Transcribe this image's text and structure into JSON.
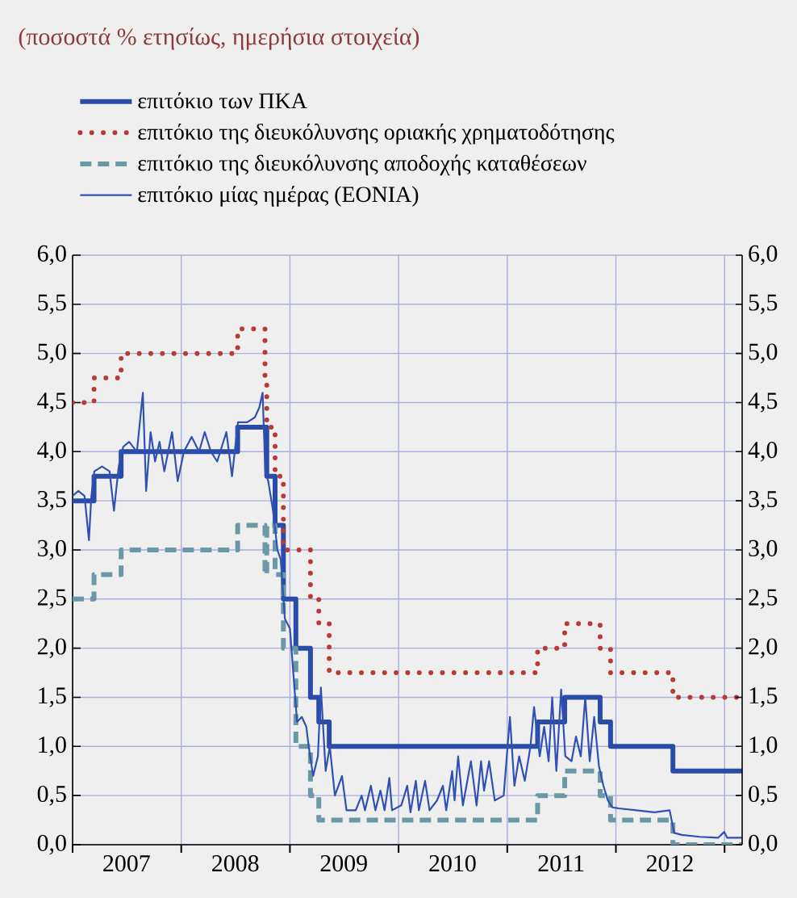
{
  "chart_data": {
    "type": "line",
    "title": "(ποσοστά % ετησίως, ημερήσια στοιχεία)",
    "xlim": [
      "2007-01-01",
      "2013-03-01"
    ],
    "xticks": [
      {
        "value": "2007-01-01",
        "label": null
      },
      {
        "value": "2008-01-01",
        "label": null
      },
      {
        "value": "2009-01-01",
        "label": null
      },
      {
        "value": "2010-01-01",
        "label": null
      },
      {
        "value": "2011-01-01",
        "label": null
      },
      {
        "value": "2012-01-01",
        "label": null
      },
      {
        "value": "2013-01-01",
        "label": null
      },
      {
        "value": "2007-07-01",
        "label": "2007"
      },
      {
        "value": "2008-07-01",
        "label": "2008"
      },
      {
        "value": "2009-07-01",
        "label": "2009"
      },
      {
        "value": "2010-07-01",
        "label": "2010"
      },
      {
        "value": "2011-07-01",
        "label": "2011"
      },
      {
        "value": "2012-07-01",
        "label": "2012"
      }
    ],
    "ylim": [
      0,
      6
    ],
    "yticks": [
      {
        "value": 0,
        "label": "0,0"
      },
      {
        "value": 0.5,
        "label": "0,5"
      },
      {
        "value": 1,
        "label": "1,0"
      },
      {
        "value": 1.5,
        "label": "1,5"
      },
      {
        "value": 2,
        "label": "2,0"
      },
      {
        "value": 2.5,
        "label": "2,5"
      },
      {
        "value": 3,
        "label": "3,0"
      },
      {
        "value": 3.5,
        "label": "3,5"
      },
      {
        "value": 4,
        "label": "4,0"
      },
      {
        "value": 4.5,
        "label": "4,5"
      },
      {
        "value": 5,
        "label": "5,0"
      },
      {
        "value": 5.5,
        "label": "5,5"
      },
      {
        "value": 6,
        "label": "6,0"
      }
    ],
    "y2lim": [
      0,
      6
    ],
    "y2ticks": [
      {
        "value": 0,
        "label": "0,0"
      },
      {
        "value": 0.5,
        "label": "0,5"
      },
      {
        "value": 1,
        "label": "1,0"
      },
      {
        "value": 1.5,
        "label": "1,5"
      },
      {
        "value": 2,
        "label": "2,0"
      },
      {
        "value": 2.5,
        "label": "2,5"
      },
      {
        "value": 3,
        "label": "3,0"
      },
      {
        "value": 3.5,
        "label": "3,5"
      },
      {
        "value": 4,
        "label": "4,0"
      },
      {
        "value": 4.5,
        "label": "4,5"
      },
      {
        "value": 5,
        "label": "5,0"
      },
      {
        "value": 5.5,
        "label": "5,5"
      },
      {
        "value": 6,
        "label": "6,0"
      }
    ],
    "grid": true,
    "legend": "top",
    "series": [
      {
        "name": "επιτόκιο των ΠΚΑ",
        "type": "step",
        "color": "#2b4ba8",
        "line_style": "solid",
        "x": [
          "2007-01-01",
          "2007-03-14",
          "2007-06-13",
          "2008-07-09",
          "2008-10-15",
          "2008-11-12",
          "2008-12-10",
          "2009-01-21",
          "2009-03-11",
          "2009-04-08",
          "2009-05-13",
          "2011-04-13",
          "2011-07-13",
          "2011-11-09",
          "2011-12-14",
          "2012-07-11",
          "2013-03-01"
        ],
        "values": [
          3.5,
          3.75,
          4.0,
          4.25,
          3.75,
          3.25,
          2.5,
          2.0,
          1.5,
          1.25,
          1.0,
          1.25,
          1.5,
          1.25,
          1.0,
          0.75,
          0.75
        ]
      },
      {
        "name": "επιτόκιο της διευκόλυνσης οριακής χρηματοδότησης",
        "type": "step",
        "color": "#b83a30",
        "line_style": "dotted",
        "x": [
          "2007-01-01",
          "2007-03-14",
          "2007-06-13",
          "2008-07-09",
          "2008-10-09",
          "2008-10-15",
          "2008-11-12",
          "2008-12-10",
          "2009-03-11",
          "2009-04-08",
          "2009-05-13",
          "2011-04-13",
          "2011-07-13",
          "2011-11-09",
          "2011-12-14",
          "2012-07-11",
          "2013-03-01"
        ],
        "values": [
          4.5,
          4.75,
          5.0,
          5.25,
          4.75,
          4.25,
          3.75,
          3.0,
          2.5,
          2.25,
          1.75,
          2.0,
          2.25,
          2.0,
          1.75,
          1.5,
          1.5
        ]
      },
      {
        "name": "επιτόκιο της διευκόλυνσης αποδοχής καταθέσεων",
        "type": "step",
        "color": "#6a98a6",
        "line_style": "dashed",
        "x": [
          "2007-01-01",
          "2007-03-14",
          "2007-06-13",
          "2008-07-09",
          "2008-10-09",
          "2008-10-15",
          "2008-11-12",
          "2008-12-10",
          "2009-01-21",
          "2009-03-11",
          "2009-04-08",
          "2011-04-13",
          "2011-07-13",
          "2011-11-09",
          "2011-12-14",
          "2012-07-11",
          "2013-03-01"
        ],
        "values": [
          2.5,
          2.75,
          3.0,
          3.25,
          2.75,
          3.25,
          2.75,
          2.0,
          1.0,
          0.5,
          0.25,
          0.5,
          0.75,
          0.5,
          0.25,
          0.0,
          0.0
        ]
      },
      {
        "name": "επιτόκιο μίας ημέρας (EONIA)",
        "type": "line",
        "color": "#3050b4",
        "line_style": "solid",
        "x": [
          "2007-01-01",
          "2007-01-20",
          "2007-02-10",
          "2007-02-25",
          "2007-03-05",
          "2007-03-15",
          "2007-04-10",
          "2007-05-05",
          "2007-05-20",
          "2007-06-05",
          "2007-06-20",
          "2007-07-10",
          "2007-08-05",
          "2007-08-25",
          "2007-09-05",
          "2007-09-20",
          "2007-10-05",
          "2007-10-20",
          "2007-11-05",
          "2007-12-01",
          "2007-12-20",
          "2008-01-10",
          "2008-02-05",
          "2008-03-01",
          "2008-03-20",
          "2008-04-10",
          "2008-05-01",
          "2008-06-01",
          "2008-06-20",
          "2008-07-10",
          "2008-08-10",
          "2008-09-05",
          "2008-09-20",
          "2008-10-01",
          "2008-10-10",
          "2008-10-20",
          "2008-11-05",
          "2008-11-20",
          "2008-12-01",
          "2008-12-15",
          "2009-01-01",
          "2009-01-25",
          "2009-02-10",
          "2009-02-25",
          "2009-03-05",
          "2009-03-20",
          "2009-04-05",
          "2009-04-15",
          "2009-05-01",
          "2009-05-15",
          "2009-06-01",
          "2009-06-25",
          "2009-07-10",
          "2009-08-10",
          "2009-08-30",
          "2009-09-10",
          "2009-09-30",
          "2009-10-15",
          "2009-11-01",
          "2009-11-15",
          "2009-12-01",
          "2009-12-10",
          "2010-01-10",
          "2010-01-30",
          "2010-02-10",
          "2010-02-28",
          "2010-03-10",
          "2010-03-31",
          "2010-04-15",
          "2010-05-10",
          "2010-05-30",
          "2010-06-10",
          "2010-06-30",
          "2010-07-08",
          "2010-07-20",
          "2010-08-05",
          "2010-09-01",
          "2010-09-20",
          "2010-10-05",
          "2010-10-15",
          "2010-11-01",
          "2010-11-20",
          "2010-12-20",
          "2011-01-10",
          "2011-01-25",
          "2011-02-10",
          "2011-03-01",
          "2011-03-20",
          "2011-04-01",
          "2011-04-20",
          "2011-05-05",
          "2011-05-20",
          "2011-06-01",
          "2011-06-15",
          "2011-07-01",
          "2011-07-15",
          "2011-08-05",
          "2011-08-20",
          "2011-09-05",
          "2011-09-20",
          "2011-10-05",
          "2011-10-20",
          "2011-11-05",
          "2011-11-20",
          "2011-12-05",
          "2011-12-20",
          "2012-01-10",
          "2012-03-10",
          "2012-05-10",
          "2012-06-30",
          "2012-07-10",
          "2012-07-15",
          "2012-08-10",
          "2012-10-10",
          "2012-12-10",
          "2012-12-31",
          "2013-01-10",
          "2013-03-01"
        ],
        "values": [
          3.55,
          3.6,
          3.55,
          3.1,
          3.55,
          3.8,
          3.85,
          3.8,
          3.4,
          3.85,
          4.05,
          4.1,
          4.0,
          4.6,
          3.6,
          4.2,
          3.9,
          4.1,
          3.8,
          4.2,
          3.7,
          4.0,
          4.15,
          4.0,
          4.2,
          4.0,
          3.9,
          4.2,
          3.75,
          4.3,
          4.3,
          4.35,
          4.45,
          4.6,
          3.8,
          3.7,
          3.4,
          3.0,
          2.9,
          2.3,
          2.2,
          1.25,
          1.3,
          1.2,
          1.0,
          0.7,
          0.9,
          1.6,
          0.75,
          1.0,
          0.5,
          0.7,
          0.35,
          0.35,
          0.5,
          0.35,
          0.6,
          0.35,
          0.55,
          0.35,
          0.68,
          0.35,
          0.4,
          0.6,
          0.33,
          0.65,
          0.35,
          0.65,
          0.35,
          0.45,
          0.6,
          0.35,
          0.75,
          0.45,
          0.9,
          0.4,
          0.85,
          0.4,
          0.85,
          0.55,
          0.85,
          0.45,
          0.5,
          1.3,
          0.6,
          0.9,
          0.65,
          1.0,
          1.4,
          0.9,
          1.2,
          0.85,
          1.5,
          0.75,
          1.58,
          0.9,
          0.85,
          1.1,
          0.9,
          1.5,
          0.85,
          1.3,
          0.8,
          0.6,
          0.45,
          0.38,
          0.37,
          0.35,
          0.33,
          0.35,
          0.2,
          0.12,
          0.1,
          0.08,
          0.07,
          0.13,
          0.07,
          0.07
        ]
      }
    ]
  }
}
